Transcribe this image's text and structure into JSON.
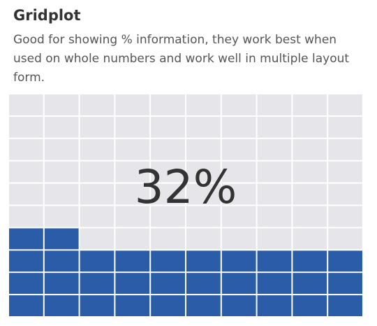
{
  "header": {
    "title": "Gridplot",
    "subtitle": "Good for showing % information, they work best when used on whole numbers and work well in multiple layout form."
  },
  "chart_data": {
    "type": "waffle",
    "rows": 10,
    "columns": 10,
    "value_percent": 32,
    "label": "32%",
    "fill_order": "bottom-to-top, left-to-right",
    "filled_color": "#2a5ca8",
    "empty_color": "#e6e6ea",
    "gap_color": "#ffffff"
  }
}
